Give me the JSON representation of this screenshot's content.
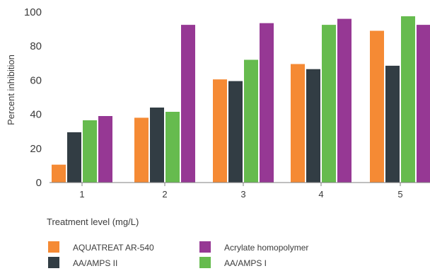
{
  "chart_data": {
    "type": "bar",
    "title": "",
    "xlabel": "Treatment level (mg/L)",
    "ylabel": "Percent inhibition",
    "ylim": [
      0,
      100
    ],
    "yticks": [
      0,
      20,
      40,
      60,
      80,
      100
    ],
    "categories": [
      "1",
      "2",
      "3",
      "4",
      "5"
    ],
    "grid": false,
    "legend_position": "bottom",
    "series": [
      {
        "name": "AQUATREAT AR-540",
        "color": "#f58a34",
        "values": [
          10.5,
          38,
          60.5,
          69.5,
          89
        ]
      },
      {
        "name": "AA/AMPS II",
        "color": "#323d44",
        "values": [
          29.5,
          44,
          59.5,
          66.5,
          68.5
        ]
      },
      {
        "name": "AA/AMPS I",
        "color": "#66bb4e",
        "values": [
          36.5,
          41.5,
          72,
          92.5,
          97.5
        ]
      },
      {
        "name": "Acrylate homopolymer",
        "color": "#963894",
        "values": [
          39,
          92.5,
          93.5,
          96,
          92.5
        ]
      }
    ]
  }
}
